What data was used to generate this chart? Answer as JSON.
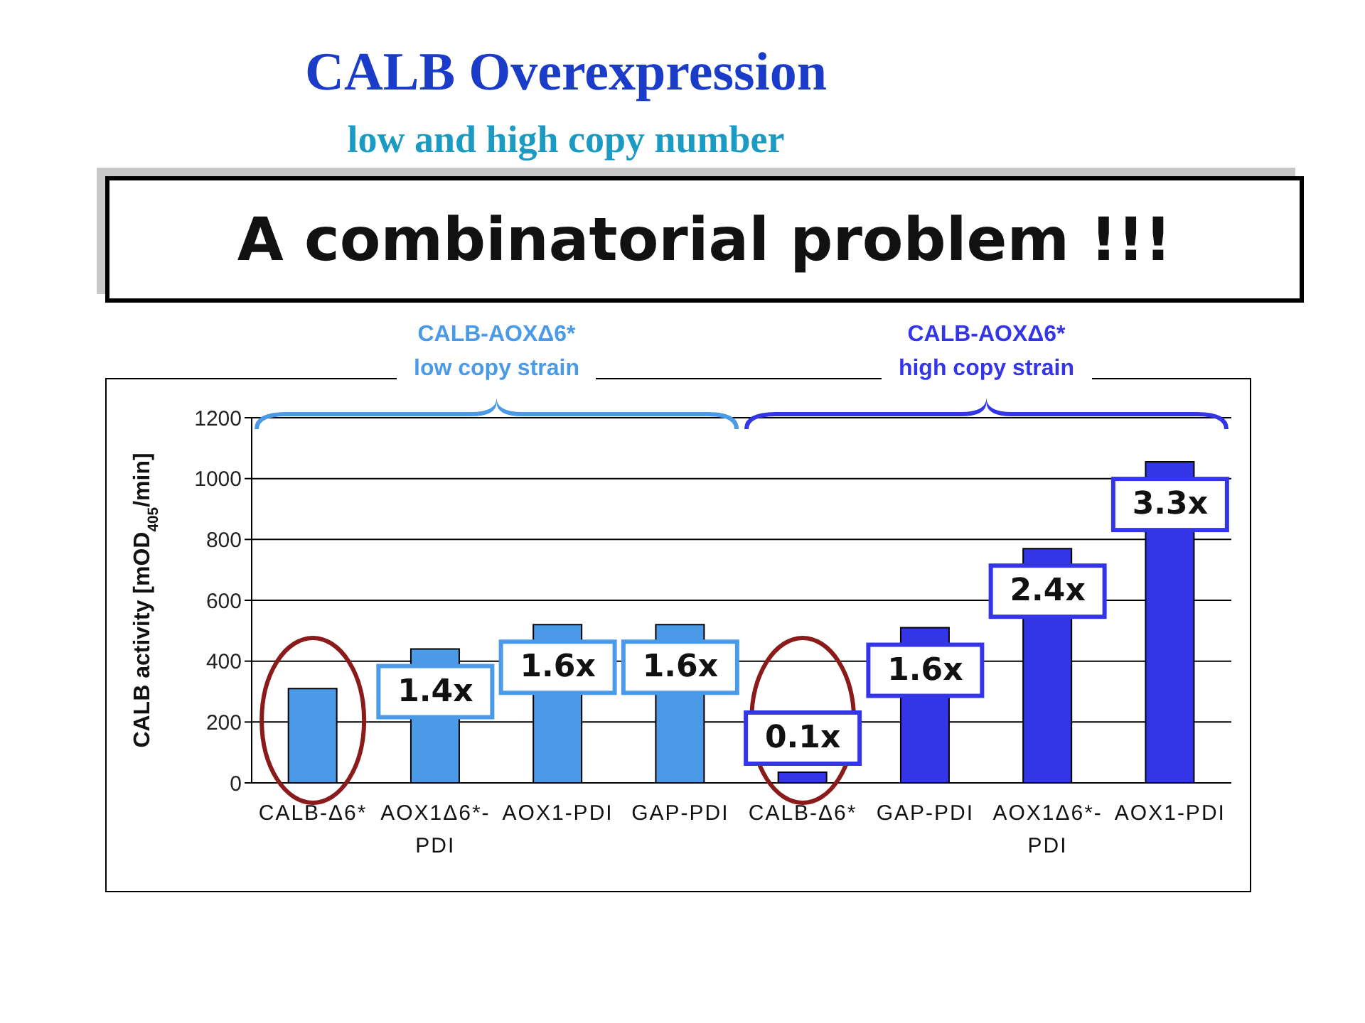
{
  "chart_data": {
    "type": "bar",
    "title": "CALB Overexpression",
    "subtitle": "low and high copy number",
    "ylabel": "CALB activity [mOD$_{405}$/min]",
    "annotations": [
      "A combinatorial problem !!!",
      "CALB-AOXΔ6*\nlow copy strain",
      "CALB-AOXΔ6*\nhigh copy strain",
      {
        "text": "1.4x",
        "x": "AOX1Δ6*-PDI",
        "y": 440
      },
      {
        "text": "1.6x",
        "x": "AOX1-PDI",
        "y": 520
      },
      {
        "text": "1.6x",
        "x": "GAP-PDI",
        "y": 520
      },
      {
        "text": "0.1x",
        "y": 35
      },
      {
        "text": "1.6x",
        "y": 510
      },
      {
        "text": "2.4x",
        "y": 770
      },
      {
        "text": "3.3x",
        "y": 1055
      }
    ],
    "categories": [
      "CALB-Δ6*",
      "AOX1Δ6*-PDI",
      "AOX1-PDI",
      "GAP-PDI",
      "CALB-Δ6*",
      "GAP-PDI",
      "AOX1Δ6*-PDI",
      "AOX1-PDI"
    ],
    "values": [
      310,
      440,
      520,
      520,
      35,
      510,
      770,
      1055
    ],
    "colors": [
      "#4a9ae8",
      "#4a9ae8",
      "#4a9ae8",
      "#4a9ae8",
      "#3535e8",
      "#3535e8",
      "#3535e8",
      "#3535e8"
    ],
    "ylim": [
      0,
      1200
    ],
    "yticks": [
      0,
      200,
      400,
      600,
      800,
      1000,
      1200
    ],
    "grid": "y"
  }
}
